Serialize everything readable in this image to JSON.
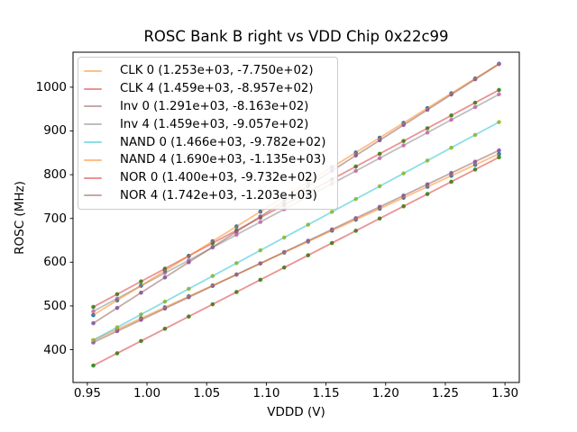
{
  "chart_data": {
    "type": "line",
    "title": "ROSC Bank B right vs VDD Chip 0x22c99",
    "xlabel": "VDDD (V)",
    "ylabel": "ROSC (MHz)",
    "xlim": [
      0.938,
      1.312
    ],
    "ylim": [
      325,
      1080
    ],
    "xticks": [
      {
        "v": 0.95,
        "label": "0.95"
      },
      {
        "v": 1.0,
        "label": "1.00"
      },
      {
        "v": 1.05,
        "label": "1.05"
      },
      {
        "v": 1.1,
        "label": "1.10"
      },
      {
        "v": 1.15,
        "label": "1.15"
      },
      {
        "v": 1.2,
        "label": "1.20"
      },
      {
        "v": 1.25,
        "label": "1.25"
      },
      {
        "v": 1.3,
        "label": "1.30"
      }
    ],
    "yticks": [
      {
        "v": 400,
        "label": "400"
      },
      {
        "v": 500,
        "label": "500"
      },
      {
        "v": 600,
        "label": "600"
      },
      {
        "v": 700,
        "label": "700"
      },
      {
        "v": 800,
        "label": "800"
      },
      {
        "v": 900,
        "label": "900"
      },
      {
        "v": 1000,
        "label": "1000"
      }
    ],
    "x_points": [
      0.955,
      0.975,
      0.995,
      1.015,
      1.035,
      1.055,
      1.075,
      1.095,
      1.115,
      1.135,
      1.155,
      1.175,
      1.195,
      1.215,
      1.235,
      1.255,
      1.275,
      1.295
    ],
    "line_alpha": 0.5,
    "grid": false,
    "legend_position": "upper left",
    "series": [
      {
        "name": "CLK 0",
        "legend_label": "CLK 0 (1.253e+03, -7.750e+02)",
        "slope": 1253,
        "intercept": -775.0,
        "line_color": "#ff7f0e",
        "marker_color": "#1f77b4"
      },
      {
        "name": "CLK 4",
        "legend_label": "CLK 4 (1.459e+03, -8.957e+02)",
        "slope": 1459,
        "intercept": -895.7,
        "line_color": "#d62728",
        "marker_color": "#2ca02c"
      },
      {
        "name": "Inv 0",
        "legend_label": "Inv 0 (1.291e+03, -8.163e+02)",
        "slope": 1291,
        "intercept": -816.3,
        "line_color": "#8c564b",
        "marker_color": "#9467bd"
      },
      {
        "name": "Inv 4",
        "legend_label": "Inv 4 (1.459e+03, -9.057e+02)",
        "slope": 1459,
        "intercept": -905.7,
        "line_color": "#7f7f7f",
        "marker_color": "#e377c2"
      },
      {
        "name": "NAND 0",
        "legend_label": "NAND 0 (1.466e+03, -9.782e+02)",
        "slope": 1466,
        "intercept": -978.2,
        "line_color": "#17becf",
        "marker_color": "#bcbd22"
      },
      {
        "name": "NAND 4",
        "legend_label": "NAND 4 (1.690e+03, -1.135e+03)",
        "slope": 1690,
        "intercept": -1135.0,
        "line_color": "#ff7f0e",
        "marker_color": "#1f77b4"
      },
      {
        "name": "NOR 0",
        "legend_label": "NOR 0 (1.400e+03, -9.732e+02)",
        "slope": 1400,
        "intercept": -973.2,
        "line_color": "#d62728",
        "marker_color": "#2ca02c"
      },
      {
        "name": "NOR 4",
        "legend_label": "NOR 4 (1.742e+03, -1.203e+03)",
        "slope": 1742,
        "intercept": -1203.0,
        "line_color": "#8c564b",
        "marker_color": "#9467bd"
      }
    ]
  }
}
